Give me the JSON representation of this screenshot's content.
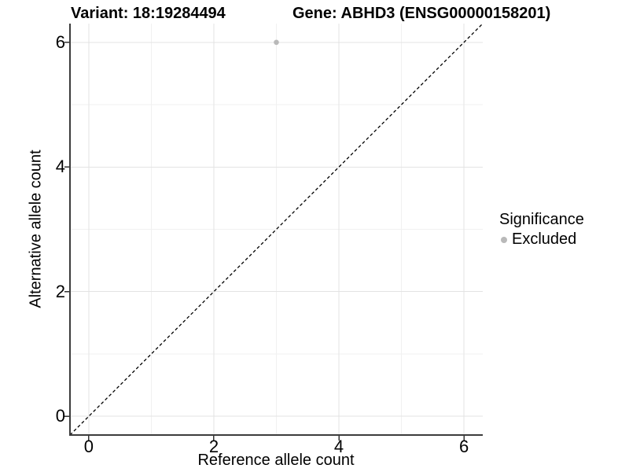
{
  "titles": {
    "left": "Variant: 18:19284494",
    "right": "Gene: ABHD3 (ENSG00000158201)"
  },
  "legend": {
    "title": "Significance",
    "entries": [
      {
        "label": "Excluded",
        "color": "#b9b9b9"
      }
    ]
  },
  "chart_data": {
    "type": "scatter",
    "title": "Variant: 18:19284494   Gene: ABHD3 (ENSG00000158201)",
    "xlabel": "Reference allele count",
    "ylabel": "Alternative allele count",
    "xlim": [
      -0.3,
      6.3
    ],
    "ylim": [
      -0.3,
      6.3
    ],
    "x_ticks": [
      0,
      2,
      4,
      6
    ],
    "y_ticks": [
      0,
      2,
      4,
      6
    ],
    "x_minor_ticks": [
      1,
      3,
      5
    ],
    "y_minor_ticks": [
      1,
      3,
      5
    ],
    "grid": true,
    "legend_position": "right",
    "legend_title": "Significance",
    "series": [
      {
        "name": "Excluded",
        "color": "#b9b9b9",
        "points": [
          {
            "x": 3,
            "y": 6
          }
        ]
      }
    ],
    "reference_line": {
      "type": "abline",
      "slope": 1,
      "intercept": 0,
      "style": "dashed",
      "color": "#000000"
    }
  },
  "colors": {
    "background": "#ffffff",
    "grid_major": "#e3e3e3",
    "grid_minor": "#f1f1f1",
    "axis_line": "#3c3c3c",
    "tick_mark": "#333333",
    "text": "#000000",
    "point": "#b9b9b9"
  }
}
